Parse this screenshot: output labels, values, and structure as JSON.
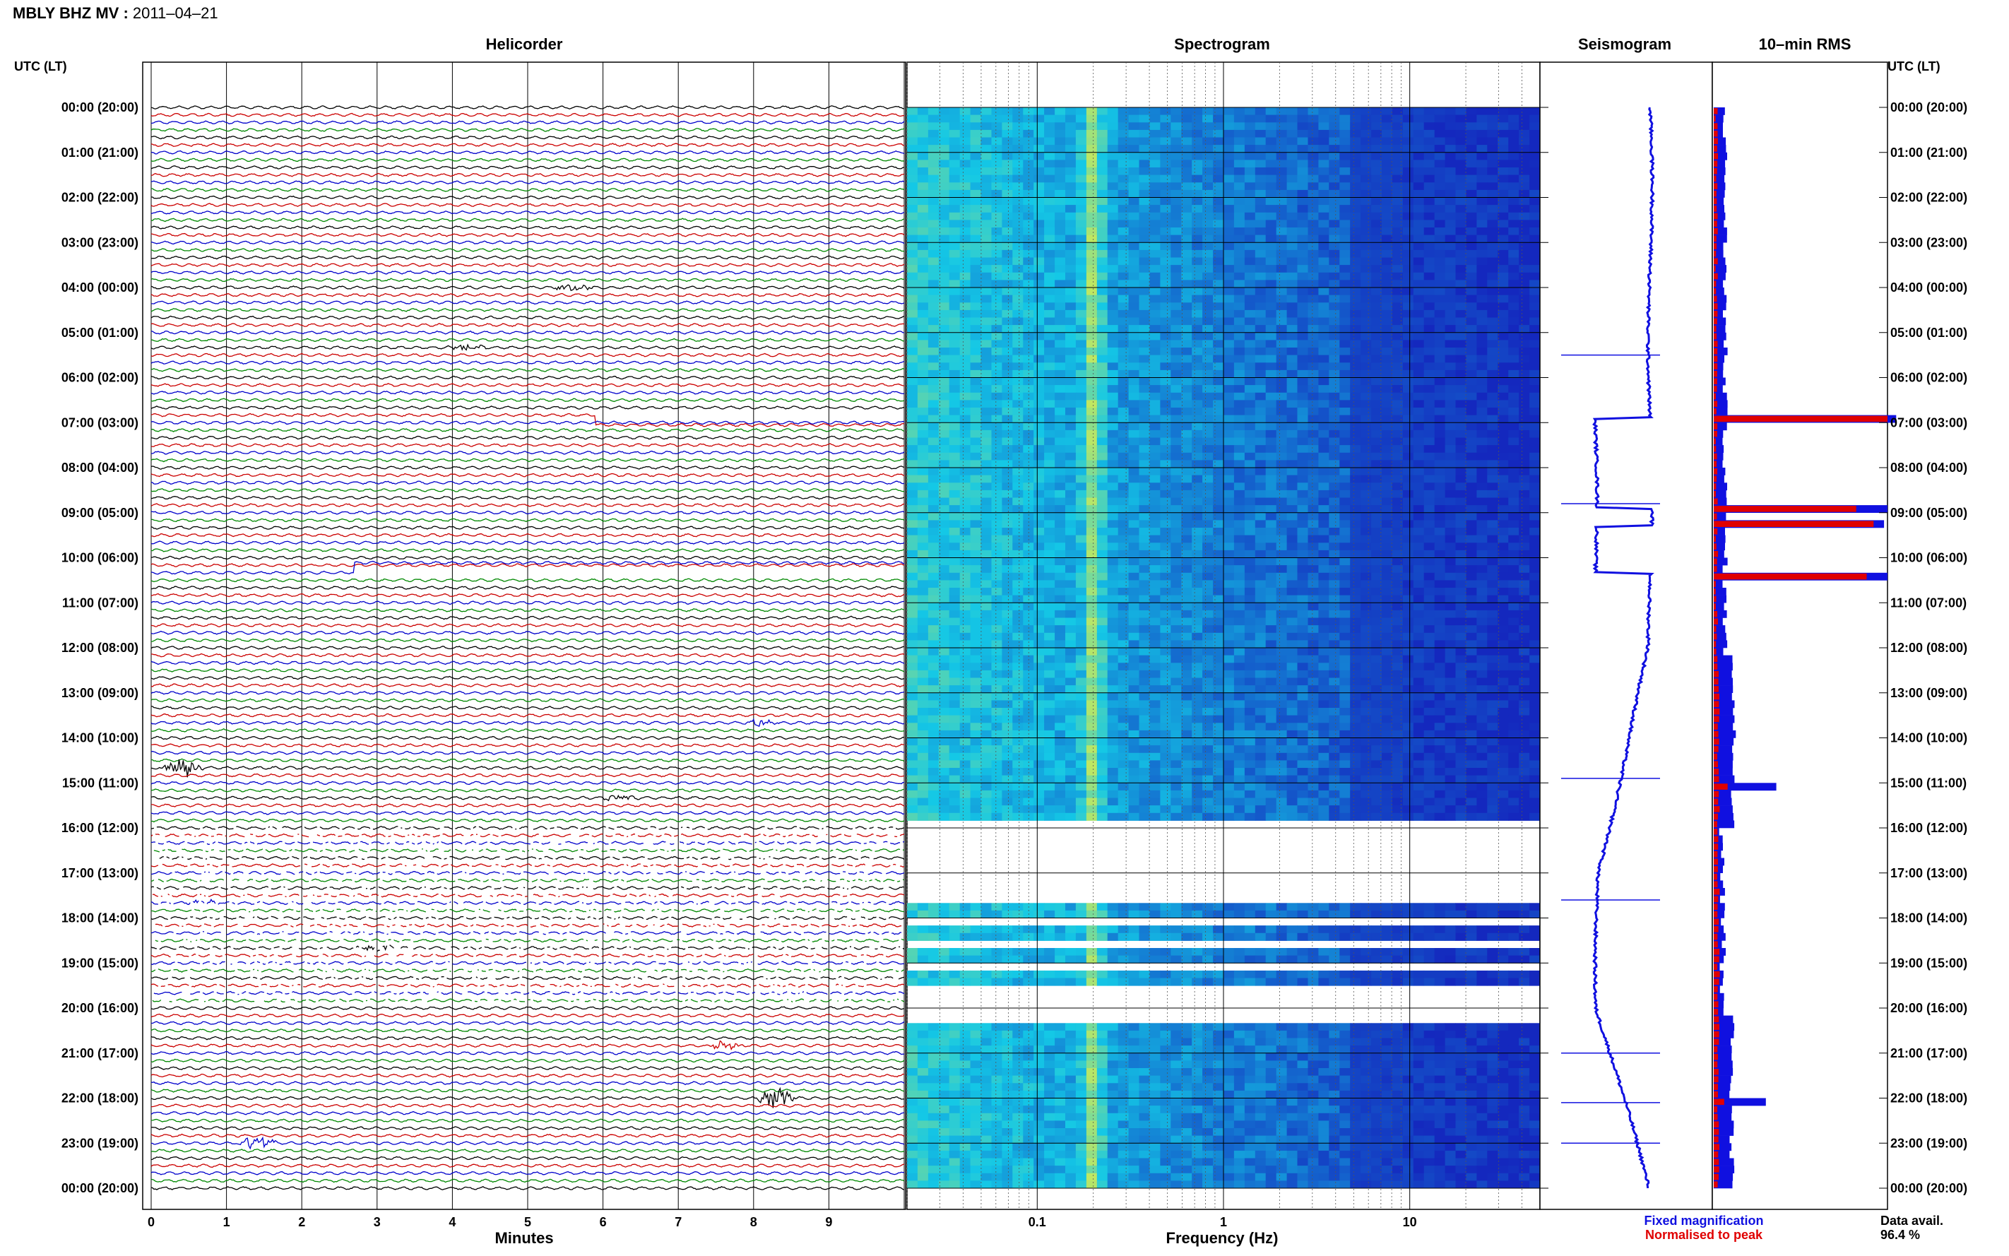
{
  "header": {
    "station_label": "MBLY BHZ MV : ",
    "date": "2011–04–21"
  },
  "labels": {
    "utc_left": "UTC (LT)",
    "utc_right": "UTC (LT)",
    "data_avail_label": "Data avail.",
    "data_avail_value": "96.4 %",
    "legend_fixed": "Fixed magnification",
    "legend_normalised": "Normalised to peak"
  },
  "colors": {
    "trace_cycle": [
      "#000000",
      "#cc0000",
      "#0000cc",
      "#008800"
    ],
    "spectrogram_low": "#1e32c8",
    "spectrogram_high": "#f0f050",
    "seismogram": "#1010e0",
    "rms_fixed": "#1010e0",
    "rms_normalised": "#e00000"
  },
  "chart_data": [
    {
      "type": "line",
      "panel": "helicorder",
      "title": "Helicorder",
      "xlabel": "Minutes",
      "xlim": [
        0,
        10
      ],
      "x_ticks": [
        "0",
        "1",
        "2",
        "3",
        "4",
        "5",
        "6",
        "7",
        "8",
        "9"
      ],
      "rows": 144,
      "row_minutes": 10,
      "y_ticks": [
        "00:00 (20:00)",
        "01:00 (21:00)",
        "02:00 (22:00)",
        "03:00 (23:00)",
        "04:00 (00:00)",
        "05:00 (01:00)",
        "06:00 (02:00)",
        "07:00 (03:00)",
        "08:00 (04:00)",
        "09:00 (05:00)",
        "10:00 (06:00)",
        "11:00 (07:00)",
        "12:00 (08:00)",
        "13:00 (09:00)",
        "14:00 (10:00)",
        "15:00 (11:00)",
        "16:00 (12:00)",
        "17:00 (13:00)",
        "18:00 (14:00)",
        "19:00 (15:00)",
        "20:00 (16:00)",
        "21:00 (17:00)",
        "22:00 (18:00)",
        "23:00 (19:00)",
        "00:00 (20:00)"
      ],
      "events": [
        {
          "hour": 4.0,
          "minute": 5.6,
          "amp": 1.2
        },
        {
          "hour": 5.3,
          "minute": 4.2,
          "amp": 1.0
        },
        {
          "hour": 14.7,
          "minute": 0.4,
          "amp": 3.5
        },
        {
          "hour": 15.3,
          "minute": 6.2,
          "amp": 1.0
        },
        {
          "hour": 13.6,
          "minute": 8.1,
          "amp": 1.0
        },
        {
          "hour": 17.6,
          "minute": 0.7,
          "amp": 1.2
        },
        {
          "hour": 18.6,
          "minute": 3.0,
          "amp": 1.2
        },
        {
          "hour": 20.8,
          "minute": 7.6,
          "amp": 1.5
        },
        {
          "hour": 22.0,
          "minute": 8.3,
          "amp": 3.5
        },
        {
          "hour": 23.0,
          "minute": 1.4,
          "amp": 2.5
        }
      ],
      "steps": [
        {
          "hour_from": 6.8,
          "hour_to": 6.95,
          "at_minute": 5.9
        },
        {
          "hour_from": 10.2,
          "hour_to": 10.35,
          "at_minute": 2.7
        }
      ],
      "gap_hours": [
        16.0,
        20.0
      ]
    },
    {
      "type": "heatmap",
      "panel": "spectrogram",
      "title": "Spectrogram",
      "xlabel": "Frequency (Hz)",
      "x_scale": "log",
      "xlim": [
        0.02,
        50
      ],
      "x_ticks": [
        {
          "value": 0.1,
          "label": "0.1"
        },
        {
          "value": 1,
          "label": "1"
        },
        {
          "value": 10,
          "label": "10"
        }
      ],
      "peak_frequency_hz": 0.2,
      "gap_hours": [
        [
          15.75,
          16.3
        ],
        [
          16.3,
          17.35
        ],
        [
          19.6,
          20.3
        ]
      ],
      "partial_gap_hours": [
        17.35,
        19.6
      ]
    },
    {
      "type": "line",
      "panel": "seismogram",
      "title": "Seismogram",
      "legend": "Fixed magnification",
      "y_hours": [
        0,
        24
      ],
      "offset_segments": [
        [
          6.9,
          8.9
        ],
        [
          9.3,
          10.35
        ]
      ],
      "spikes_hours": [
        5.5,
        8.8,
        14.9,
        17.6,
        21.0,
        22.1,
        23.0
      ]
    },
    {
      "type": "bar",
      "panel": "rms",
      "title": "10–min RMS",
      "series": [
        {
          "name": "Fixed magnification"
        },
        {
          "name": "Normalised to peak"
        }
      ],
      "bins": 144,
      "highlight_bins": [
        {
          "hour": 6.87,
          "fixed": 1.05,
          "normalised": 1.0
        },
        {
          "hour": 8.87,
          "fixed": 1.0,
          "normalised": 0.82
        },
        {
          "hour": 9.2,
          "fixed": 0.98,
          "normalised": 0.92
        },
        {
          "hour": 10.38,
          "fixed": 1.0,
          "normalised": 0.88
        },
        {
          "hour": 14.95,
          "fixed": 0.36,
          "normalised": 0.08
        },
        {
          "hour": 22.05,
          "fixed": 0.3,
          "normalised": 0.06
        }
      ]
    }
  ]
}
